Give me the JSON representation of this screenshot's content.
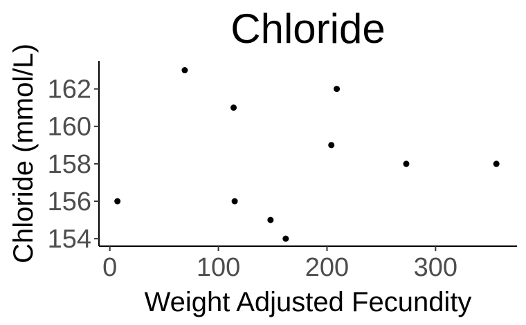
{
  "chart_data": {
    "type": "scatter",
    "title": "Chloride",
    "xlabel": "Weight Adjusted Fecundity",
    "ylabel": "Chloride (mmol/L)",
    "xlim": [
      -10,
      375
    ],
    "ylim": [
      153.6,
      163.5
    ],
    "x_ticks": [
      0,
      100,
      200,
      300
    ],
    "y_ticks": [
      154,
      156,
      158,
      160,
      162
    ],
    "grid": false,
    "legend": "none",
    "point_color": "#000000",
    "points": [
      {
        "x": 7,
        "y": 156
      },
      {
        "x": 69,
        "y": 163
      },
      {
        "x": 114,
        "y": 161
      },
      {
        "x": 115,
        "y": 156
      },
      {
        "x": 148,
        "y": 155
      },
      {
        "x": 162,
        "y": 154
      },
      {
        "x": 204,
        "y": 159
      },
      {
        "x": 209,
        "y": 162
      },
      {
        "x": 273,
        "y": 158
      },
      {
        "x": 356,
        "y": 158
      }
    ]
  }
}
